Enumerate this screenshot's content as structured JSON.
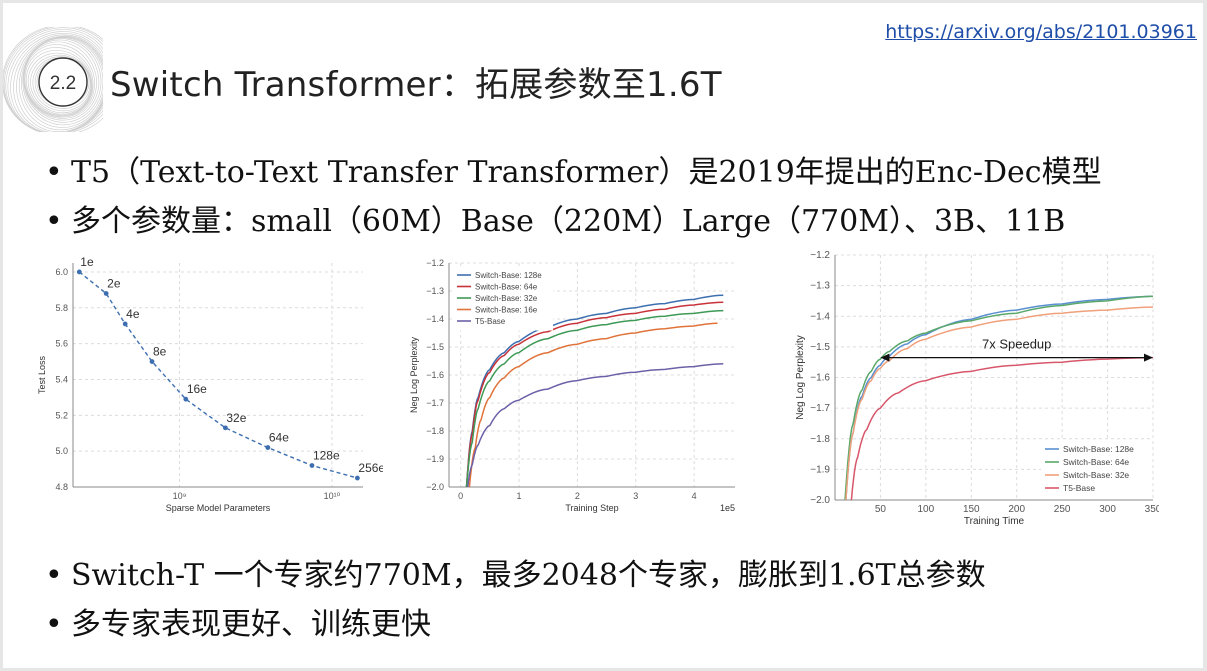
{
  "header": {
    "section_number": "2.2",
    "title": "Switch Transformer：拓展参数至1.6T",
    "link": "https://arxiv.org/abs/2101.03961"
  },
  "bullets_top": [
    "T5（Text-to-Text Transfer Transformer）是2019年提出的Enc-Dec模型",
    "多个参数量：small（60M）Base（220M）Large（770M）、3B、11B"
  ],
  "bullets_bottom": [
    "Switch-T 一个专家约770M，最多2048个专家，膨胀到1.6T总参数",
    "多专家表现更好、训练更快"
  ],
  "chart_data": [
    {
      "type": "line",
      "xlabel": "Sparse Model Parameters",
      "ylabel": "Test Loss",
      "xscale": "log",
      "x_ticks": [
        "10⁹",
        "10¹⁰"
      ],
      "y_ticks": [
        "4.8",
        "5.0",
        "5.2",
        "5.4",
        "5.6",
        "5.8",
        "6.0"
      ],
      "ylim": [
        4.8,
        6.05
      ],
      "color": "#3d6fb0",
      "point_labels": [
        "1e",
        "2e",
        "4e",
        "8e",
        "16e",
        "32e",
        "64e",
        "128e",
        "256e"
      ],
      "x": [
        220000000,
        330000000,
        440000000,
        660000000,
        1100000000,
        2000000000,
        3800000000,
        7400000000,
        14700000000
      ],
      "values": [
        6.0,
        5.88,
        5.71,
        5.5,
        5.29,
        5.13,
        5.02,
        4.92,
        4.85
      ]
    },
    {
      "type": "line",
      "xlabel": "Training Step",
      "x_multiplier": "1e5",
      "ylabel": "Neg Log Perplexity",
      "x_ticks": [
        "0",
        "1",
        "2",
        "3",
        "4"
      ],
      "y_ticks": [
        "−1.2",
        "−1.3",
        "−1.4",
        "−1.5",
        "−1.6",
        "−1.7",
        "−1.8",
        "−1.9",
        "−2.0"
      ],
      "xlim": [
        -0.2,
        4.7
      ],
      "ylim": [
        -2.0,
        -1.2
      ],
      "legend_position": "top-left",
      "series": [
        {
          "name": "Switch-Base: 128e",
          "color": "#3d6fb0",
          "x": [
            0.1,
            0.2,
            0.3,
            0.5,
            0.75,
            1.0,
            1.5,
            2.0,
            2.5,
            3.0,
            3.5,
            4.0,
            4.5
          ],
          "values": [
            -2.0,
            -1.8,
            -1.68,
            -1.58,
            -1.52,
            -1.48,
            -1.43,
            -1.4,
            -1.38,
            -1.36,
            -1.345,
            -1.33,
            -1.315
          ]
        },
        {
          "name": "Switch-Base: 64e",
          "color": "#c8333a",
          "x": [
            0.1,
            0.2,
            0.3,
            0.5,
            0.75,
            1.0,
            1.5,
            2.0,
            2.5,
            3.0,
            3.5,
            4.0,
            4.5
          ],
          "values": [
            -2.0,
            -1.81,
            -1.69,
            -1.59,
            -1.53,
            -1.49,
            -1.445,
            -1.415,
            -1.395,
            -1.38,
            -1.365,
            -1.35,
            -1.34
          ]
        },
        {
          "name": "Switch-Base: 32e",
          "color": "#3e9a56",
          "x": [
            0.1,
            0.2,
            0.3,
            0.5,
            0.75,
            1.0,
            1.5,
            2.0,
            2.5,
            3.0,
            3.5,
            4.0,
            4.5
          ],
          "values": [
            -2.0,
            -1.84,
            -1.72,
            -1.62,
            -1.56,
            -1.52,
            -1.47,
            -1.44,
            -1.42,
            -1.405,
            -1.39,
            -1.38,
            -1.37
          ]
        },
        {
          "name": "Switch-Base: 16e",
          "color": "#e0733a",
          "x": [
            0.15,
            0.25,
            0.35,
            0.5,
            0.75,
            1.0,
            1.5,
            2.0,
            2.5,
            3.0,
            3.5,
            4.0,
            4.4
          ],
          "values": [
            -2.0,
            -1.86,
            -1.76,
            -1.68,
            -1.61,
            -1.57,
            -1.52,
            -1.49,
            -1.47,
            -1.45,
            -1.435,
            -1.425,
            -1.415
          ]
        },
        {
          "name": "T5-Base",
          "color": "#6d60a8",
          "x": [
            0.12,
            0.2,
            0.3,
            0.5,
            0.75,
            1.0,
            1.5,
            2.0,
            2.5,
            3.0,
            3.5,
            4.0,
            4.5
          ],
          "values": [
            -2.0,
            -1.92,
            -1.85,
            -1.78,
            -1.72,
            -1.69,
            -1.65,
            -1.62,
            -1.605,
            -1.59,
            -1.58,
            -1.57,
            -1.56
          ]
        }
      ]
    },
    {
      "type": "line",
      "xlabel": "Training Time",
      "ylabel": "Neg Log Perplexity",
      "x_ticks": [
        "50",
        "100",
        "150",
        "200",
        "250",
        "300",
        "350"
      ],
      "y_ticks": [
        "−1.2",
        "−1.3",
        "−1.4",
        "−1.5",
        "−1.6",
        "−1.7",
        "−1.8",
        "−1.9",
        "−2.0"
      ],
      "xlim": [
        0,
        350
      ],
      "ylim": [
        -2.0,
        -1.2
      ],
      "legend_position": "bottom-right",
      "annotation": "7x Speedup",
      "annotation_span": [
        50,
        350
      ],
      "annotation_y": -1.535,
      "series": [
        {
          "name": "Switch-Base: 128e",
          "color": "#5a8fd0",
          "x": [
            12,
            20,
            30,
            40,
            50,
            60,
            80,
            100,
            150,
            200,
            250,
            300,
            350
          ],
          "values": [
            -2.0,
            -1.78,
            -1.66,
            -1.6,
            -1.56,
            -1.53,
            -1.49,
            -1.46,
            -1.41,
            -1.38,
            -1.36,
            -1.345,
            -1.335
          ]
        },
        {
          "name": "Switch-Base: 64e",
          "color": "#5aa86a",
          "x": [
            11,
            20,
            30,
            40,
            50,
            60,
            80,
            100,
            150,
            200,
            250,
            300,
            350
          ],
          "values": [
            -2.0,
            -1.75,
            -1.64,
            -1.58,
            -1.54,
            -1.515,
            -1.48,
            -1.455,
            -1.415,
            -1.39,
            -1.365,
            -1.35,
            -1.335
          ]
        },
        {
          "name": "Switch-Base: 32e",
          "color": "#f0a07a",
          "x": [
            12,
            20,
            30,
            40,
            50,
            60,
            80,
            100,
            150,
            200,
            250,
            300,
            350
          ],
          "values": [
            -2.0,
            -1.78,
            -1.67,
            -1.61,
            -1.57,
            -1.545,
            -1.505,
            -1.475,
            -1.435,
            -1.41,
            -1.39,
            -1.38,
            -1.37
          ]
        },
        {
          "name": "T5-Base",
          "color": "#d8566a",
          "x": [
            18,
            25,
            35,
            50,
            70,
            100,
            150,
            200,
            250,
            300,
            350
          ],
          "values": [
            -2.0,
            -1.86,
            -1.77,
            -1.7,
            -1.65,
            -1.61,
            -1.58,
            -1.56,
            -1.55,
            -1.54,
            -1.535
          ]
        }
      ]
    }
  ]
}
